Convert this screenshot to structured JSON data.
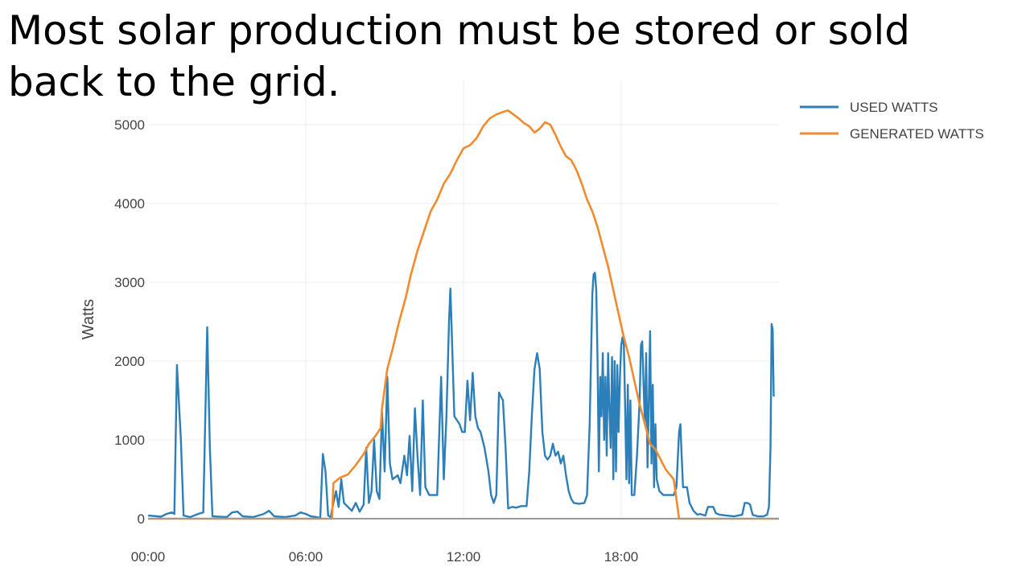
{
  "slide": {
    "title": "Most solar production must be stored or sold back to the grid."
  },
  "chart_data": {
    "type": "line",
    "title": "",
    "xlabel": "",
    "ylabel": "Watts",
    "x_unit": "hours",
    "xlim": [
      0,
      24
    ],
    "ylim": [
      0,
      5200
    ],
    "x_ticks": [
      {
        "value": 0,
        "label": "00:00"
      },
      {
        "value": 6,
        "label": "06:00"
      },
      {
        "value": 12,
        "label": "12:00"
      },
      {
        "value": 18,
        "label": "18:00"
      }
    ],
    "y_ticks": [
      {
        "value": 0,
        "label": "0"
      },
      {
        "value": 1000,
        "label": "1000"
      },
      {
        "value": 2000,
        "label": "2000"
      },
      {
        "value": 3000,
        "label": "3000"
      },
      {
        "value": 4000,
        "label": "4000"
      },
      {
        "value": 5000,
        "label": "5000"
      }
    ],
    "grid": true,
    "legend_position": "top-right",
    "series": [
      {
        "name": "USED WATTS",
        "color": "#2c7fb8",
        "points": [
          [
            0,
            40
          ],
          [
            0.5,
            25
          ],
          [
            0.7,
            60
          ],
          [
            0.9,
            80
          ],
          [
            1.0,
            60
          ],
          [
            1.1,
            1950
          ],
          [
            1.25,
            1000
          ],
          [
            1.35,
            40
          ],
          [
            1.6,
            20
          ],
          [
            1.9,
            60
          ],
          [
            2.1,
            80
          ],
          [
            2.25,
            2430
          ],
          [
            2.35,
            900
          ],
          [
            2.45,
            30
          ],
          [
            3.0,
            20
          ],
          [
            3.2,
            80
          ],
          [
            3.4,
            90
          ],
          [
            3.6,
            30
          ],
          [
            4.0,
            20
          ],
          [
            4.4,
            60
          ],
          [
            4.6,
            100
          ],
          [
            4.8,
            30
          ],
          [
            5.2,
            20
          ],
          [
            5.6,
            40
          ],
          [
            5.8,
            80
          ],
          [
            6.0,
            60
          ],
          [
            6.2,
            30
          ],
          [
            6.4,
            20
          ],
          [
            6.55,
            10
          ],
          [
            6.65,
            820
          ],
          [
            6.75,
            600
          ],
          [
            6.85,
            40
          ],
          [
            6.95,
            20
          ],
          [
            7.05,
            200
          ],
          [
            7.15,
            350
          ],
          [
            7.25,
            150
          ],
          [
            7.35,
            500
          ],
          [
            7.45,
            200
          ],
          [
            7.6,
            150
          ],
          [
            7.75,
            100
          ],
          [
            7.9,
            200
          ],
          [
            8.05,
            90
          ],
          [
            8.2,
            180
          ],
          [
            8.3,
            900
          ],
          [
            8.4,
            200
          ],
          [
            8.5,
            350
          ],
          [
            8.6,
            1000
          ],
          [
            8.7,
            350
          ],
          [
            8.8,
            250
          ],
          [
            8.9,
            1350
          ],
          [
            9.0,
            600
          ],
          [
            9.1,
            1800
          ],
          [
            9.2,
            700
          ],
          [
            9.3,
            500
          ],
          [
            9.5,
            550
          ],
          [
            9.6,
            450
          ],
          [
            9.75,
            800
          ],
          [
            9.85,
            550
          ],
          [
            9.95,
            1050
          ],
          [
            10.05,
            350
          ],
          [
            10.15,
            1400
          ],
          [
            10.25,
            800
          ],
          [
            10.35,
            300
          ],
          [
            10.45,
            1500
          ],
          [
            10.55,
            400
          ],
          [
            10.7,
            300
          ],
          [
            10.85,
            300
          ],
          [
            11.0,
            300
          ],
          [
            11.15,
            1800
          ],
          [
            11.25,
            500
          ],
          [
            11.35,
            1300
          ],
          [
            11.45,
            2500
          ],
          [
            11.5,
            2920
          ],
          [
            11.55,
            2400
          ],
          [
            11.65,
            1300
          ],
          [
            11.75,
            1250
          ],
          [
            11.85,
            1200
          ],
          [
            11.95,
            1100
          ],
          [
            12.05,
            1100
          ],
          [
            12.15,
            1750
          ],
          [
            12.25,
            1250
          ],
          [
            12.35,
            1850
          ],
          [
            12.45,
            1300
          ],
          [
            12.55,
            1150
          ],
          [
            12.65,
            1100
          ],
          [
            12.8,
            900
          ],
          [
            12.95,
            600
          ],
          [
            13.05,
            300
          ],
          [
            13.15,
            200
          ],
          [
            13.25,
            300
          ],
          [
            13.35,
            1600
          ],
          [
            13.5,
            1500
          ],
          [
            13.6,
            900
          ],
          [
            13.7,
            130
          ],
          [
            13.85,
            150
          ],
          [
            14.0,
            140
          ],
          [
            14.2,
            160
          ],
          [
            14.4,
            160
          ],
          [
            14.5,
            600
          ],
          [
            14.6,
            1300
          ],
          [
            14.7,
            1900
          ],
          [
            14.8,
            2100
          ],
          [
            14.9,
            1900
          ],
          [
            15.0,
            1100
          ],
          [
            15.1,
            800
          ],
          [
            15.2,
            750
          ],
          [
            15.3,
            800
          ],
          [
            15.4,
            950
          ],
          [
            15.5,
            800
          ],
          [
            15.6,
            850
          ],
          [
            15.7,
            700
          ],
          [
            15.8,
            800
          ],
          [
            15.9,
            550
          ],
          [
            16.0,
            350
          ],
          [
            16.1,
            250
          ],
          [
            16.2,
            200
          ],
          [
            16.4,
            190
          ],
          [
            16.6,
            200
          ],
          [
            16.7,
            300
          ],
          [
            16.8,
            1200
          ],
          [
            16.9,
            2850
          ],
          [
            16.95,
            3100
          ],
          [
            17.0,
            3120
          ],
          [
            17.05,
            2900
          ],
          [
            17.1,
            2000
          ],
          [
            17.15,
            600
          ],
          [
            17.2,
            1800
          ],
          [
            17.25,
            1300
          ],
          [
            17.3,
            2100
          ],
          [
            17.35,
            1000
          ],
          [
            17.4,
            1800
          ],
          [
            17.45,
            800
          ],
          [
            17.5,
            2100
          ],
          [
            17.55,
            1400
          ],
          [
            17.6,
            900
          ],
          [
            17.65,
            2050
          ],
          [
            17.7,
            500
          ],
          [
            17.75,
            2000
          ],
          [
            17.8,
            600
          ],
          [
            17.85,
            1950
          ],
          [
            17.9,
            1100
          ],
          [
            17.95,
            1800
          ],
          [
            18.0,
            2200
          ],
          [
            18.05,
            2300
          ],
          [
            18.1,
            2200
          ],
          [
            18.15,
            1400
          ],
          [
            18.2,
            500
          ],
          [
            18.25,
            1700
          ],
          [
            18.3,
            450
          ],
          [
            18.35,
            1500
          ],
          [
            18.4,
            300
          ],
          [
            18.5,
            300
          ],
          [
            18.6,
            800
          ],
          [
            18.7,
            1500
          ],
          [
            18.75,
            2200
          ],
          [
            18.8,
            2250
          ],
          [
            18.85,
            1700
          ],
          [
            18.9,
            1200
          ],
          [
            18.95,
            2100
          ],
          [
            19.0,
            650
          ],
          [
            19.05,
            1500
          ],
          [
            19.1,
            2380
          ],
          [
            19.15,
            700
          ],
          [
            19.2,
            1700
          ],
          [
            19.25,
            400
          ],
          [
            19.3,
            1200
          ],
          [
            19.35,
            500
          ],
          [
            19.45,
            350
          ],
          [
            19.6,
            300
          ],
          [
            19.8,
            300
          ],
          [
            20.0,
            300
          ],
          [
            20.1,
            400
          ],
          [
            20.2,
            1100
          ],
          [
            20.25,
            1200
          ],
          [
            20.3,
            800
          ],
          [
            20.35,
            400
          ],
          [
            20.5,
            400
          ],
          [
            20.6,
            200
          ],
          [
            20.75,
            100
          ],
          [
            20.9,
            50
          ],
          [
            21.0,
            60
          ],
          [
            21.2,
            40
          ],
          [
            21.3,
            150
          ],
          [
            21.5,
            150
          ],
          [
            21.6,
            70
          ],
          [
            21.75,
            50
          ],
          [
            22.0,
            40
          ],
          [
            22.3,
            30
          ],
          [
            22.6,
            50
          ],
          [
            22.7,
            200
          ],
          [
            22.8,
            200
          ],
          [
            22.9,
            180
          ],
          [
            23.0,
            50
          ],
          [
            23.2,
            30
          ],
          [
            23.4,
            30
          ],
          [
            23.55,
            50
          ],
          [
            23.62,
            150
          ],
          [
            23.68,
            900
          ],
          [
            23.72,
            2470
          ],
          [
            23.76,
            2400
          ],
          [
            23.8,
            1550
          ]
        ]
      },
      {
        "name": "GENERATED WATTS",
        "color": "#f28a2e",
        "points": [
          [
            0,
            0
          ],
          [
            6.95,
            0
          ],
          [
            7.0,
            0
          ],
          [
            7.05,
            450
          ],
          [
            7.3,
            520
          ],
          [
            7.6,
            560
          ],
          [
            7.9,
            680
          ],
          [
            8.2,
            820
          ],
          [
            8.4,
            950
          ],
          [
            8.65,
            1050
          ],
          [
            8.85,
            1150
          ],
          [
            8.9,
            1400
          ],
          [
            9.0,
            1650
          ],
          [
            9.1,
            1900
          ],
          [
            9.3,
            2150
          ],
          [
            9.55,
            2500
          ],
          [
            9.8,
            2800
          ],
          [
            10.0,
            3100
          ],
          [
            10.25,
            3400
          ],
          [
            10.5,
            3650
          ],
          [
            10.75,
            3900
          ],
          [
            11.0,
            4050
          ],
          [
            11.25,
            4250
          ],
          [
            11.5,
            4380
          ],
          [
            11.75,
            4550
          ],
          [
            12.0,
            4700
          ],
          [
            12.25,
            4740
          ],
          [
            12.5,
            4830
          ],
          [
            12.75,
            4980
          ],
          [
            13.0,
            5080
          ],
          [
            13.25,
            5130
          ],
          [
            13.5,
            5160
          ],
          [
            13.7,
            5180
          ],
          [
            13.9,
            5130
          ],
          [
            14.1,
            5080
          ],
          [
            14.3,
            5020
          ],
          [
            14.5,
            4980
          ],
          [
            14.7,
            4900
          ],
          [
            14.9,
            4950
          ],
          [
            15.1,
            5030
          ],
          [
            15.3,
            5000
          ],
          [
            15.5,
            4870
          ],
          [
            15.7,
            4720
          ],
          [
            15.9,
            4600
          ],
          [
            16.1,
            4550
          ],
          [
            16.3,
            4420
          ],
          [
            16.5,
            4250
          ],
          [
            16.7,
            4050
          ],
          [
            16.9,
            3900
          ],
          [
            17.1,
            3700
          ],
          [
            17.3,
            3450
          ],
          [
            17.5,
            3200
          ],
          [
            17.7,
            2900
          ],
          [
            17.9,
            2600
          ],
          [
            18.1,
            2300
          ],
          [
            18.3,
            2050
          ],
          [
            18.5,
            1750
          ],
          [
            18.7,
            1450
          ],
          [
            18.9,
            1200
          ],
          [
            19.1,
            950
          ],
          [
            19.3,
            880
          ],
          [
            19.5,
            750
          ],
          [
            19.7,
            620
          ],
          [
            19.85,
            560
          ],
          [
            20.0,
            500
          ],
          [
            20.1,
            250
          ],
          [
            20.2,
            0
          ],
          [
            24,
            0
          ]
        ]
      }
    ]
  }
}
